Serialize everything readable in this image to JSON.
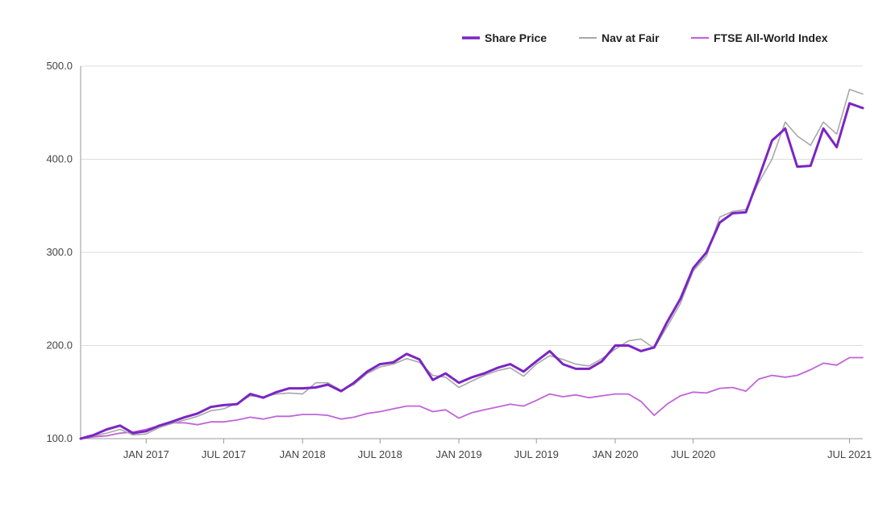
{
  "colors": {
    "share_price": "#7b25c4",
    "nav_at_fair": "#a8a8a8",
    "ftse_all_world": "#c065d8",
    "grid": "#dcdcdc",
    "axis": "#9a9a9a"
  },
  "chart_data": {
    "type": "line",
    "title": "",
    "xlabel": "",
    "ylabel": "",
    "ylim": [
      100,
      500
    ],
    "yticks": [
      {
        "value": 100,
        "label": "100.0"
      },
      {
        "value": 200,
        "label": "200.0"
      },
      {
        "value": 300,
        "label": "300.0"
      },
      {
        "value": 400,
        "label": "400.0"
      },
      {
        "value": 500,
        "label": "500.0"
      }
    ],
    "xlim": [
      "2016-08-01",
      "2021-08-01"
    ],
    "xticks": [
      {
        "date": "2017-01-01",
        "label": "JAN 2017"
      },
      {
        "date": "2017-07-01",
        "label": "JUL 2017"
      },
      {
        "date": "2018-01-01",
        "label": "JAN 2018"
      },
      {
        "date": "2018-07-01",
        "label": "JUL 2018"
      },
      {
        "date": "2019-01-01",
        "label": "JAN 2019"
      },
      {
        "date": "2019-07-01",
        "label": "JUL 2019"
      },
      {
        "date": "2020-01-01",
        "label": "JAN 2020"
      },
      {
        "date": "2020-07-01",
        "label": "JUL 2020"
      },
      {
        "date": "2021-07-01",
        "label": "JUL 2021"
      }
    ],
    "grid": true,
    "legend_position": "top-right",
    "x": [
      "2016-08",
      "2016-09",
      "2016-10",
      "2016-11",
      "2016-12",
      "2017-01",
      "2017-02",
      "2017-03",
      "2017-04",
      "2017-05",
      "2017-06",
      "2017-07",
      "2017-08",
      "2017-09",
      "2017-10",
      "2017-11",
      "2017-12",
      "2018-01",
      "2018-02",
      "2018-03",
      "2018-04",
      "2018-05",
      "2018-06",
      "2018-07",
      "2018-08",
      "2018-09",
      "2018-10",
      "2018-11",
      "2018-12",
      "2019-01",
      "2019-02",
      "2019-03",
      "2019-04",
      "2019-05",
      "2019-06",
      "2019-07",
      "2019-08",
      "2019-09",
      "2019-10",
      "2019-11",
      "2019-12",
      "2020-01",
      "2020-02",
      "2020-03",
      "2020-04",
      "2020-05",
      "2020-06",
      "2020-07",
      "2020-08",
      "2020-09",
      "2020-10",
      "2020-11",
      "2020-12",
      "2021-01",
      "2021-02",
      "2021-03",
      "2021-04",
      "2021-05",
      "2021-06",
      "2021-07",
      "2021-08"
    ],
    "series": [
      {
        "name": "Share Price",
        "key": "share_price",
        "values": [
          100,
          104,
          110,
          114,
          106,
          108,
          114,
          118,
          123,
          127,
          134,
          136,
          137,
          148,
          144,
          150,
          154,
          154,
          155,
          158,
          151,
          160,
          172,
          180,
          182,
          191,
          185,
          163,
          170,
          160,
          166,
          170,
          176,
          180,
          172,
          183,
          194,
          180,
          175,
          175,
          183,
          200,
          200,
          194,
          198,
          225,
          250,
          283,
          300,
          332,
          342,
          343,
          380,
          420,
          433,
          392,
          393,
          433,
          413,
          460,
          455
        ],
        "color_key": "share_price",
        "width": 3
      },
      {
        "name": "Nav at Fair",
        "key": "nav_at_fair",
        "values": [
          100,
          103,
          106,
          110,
          104,
          105,
          112,
          116,
          120,
          124,
          130,
          132,
          138,
          146,
          145,
          148,
          149,
          148,
          160,
          160,
          152,
          158,
          170,
          177,
          180,
          186,
          182,
          168,
          166,
          155,
          162,
          168,
          173,
          176,
          167,
          180,
          189,
          185,
          180,
          178,
          186,
          196,
          205,
          207,
          197,
          220,
          245,
          280,
          296,
          338,
          344,
          346,
          375,
          400,
          440,
          425,
          415,
          440,
          427,
          475,
          470
        ],
        "color_key": "nav_at_fair",
        "width": 1.6
      },
      {
        "name": "FTSE All-World Index",
        "key": "ftse_all_world",
        "values": [
          100,
          102,
          103,
          106,
          107,
          110,
          114,
          117,
          117,
          115,
          118,
          118,
          120,
          123,
          121,
          124,
          124,
          126,
          126,
          125,
          121,
          123,
          127,
          129,
          132,
          135,
          135,
          129,
          131,
          122,
          128,
          131,
          134,
          137,
          135,
          141,
          148,
          145,
          147,
          144,
          146,
          148,
          148,
          140,
          125,
          137,
          146,
          150,
          149,
          154,
          155,
          151,
          164,
          168,
          166,
          168,
          174,
          181,
          179,
          187,
          187
        ],
        "color_key": "ftse_all_world",
        "width": 1.8
      }
    ]
  }
}
